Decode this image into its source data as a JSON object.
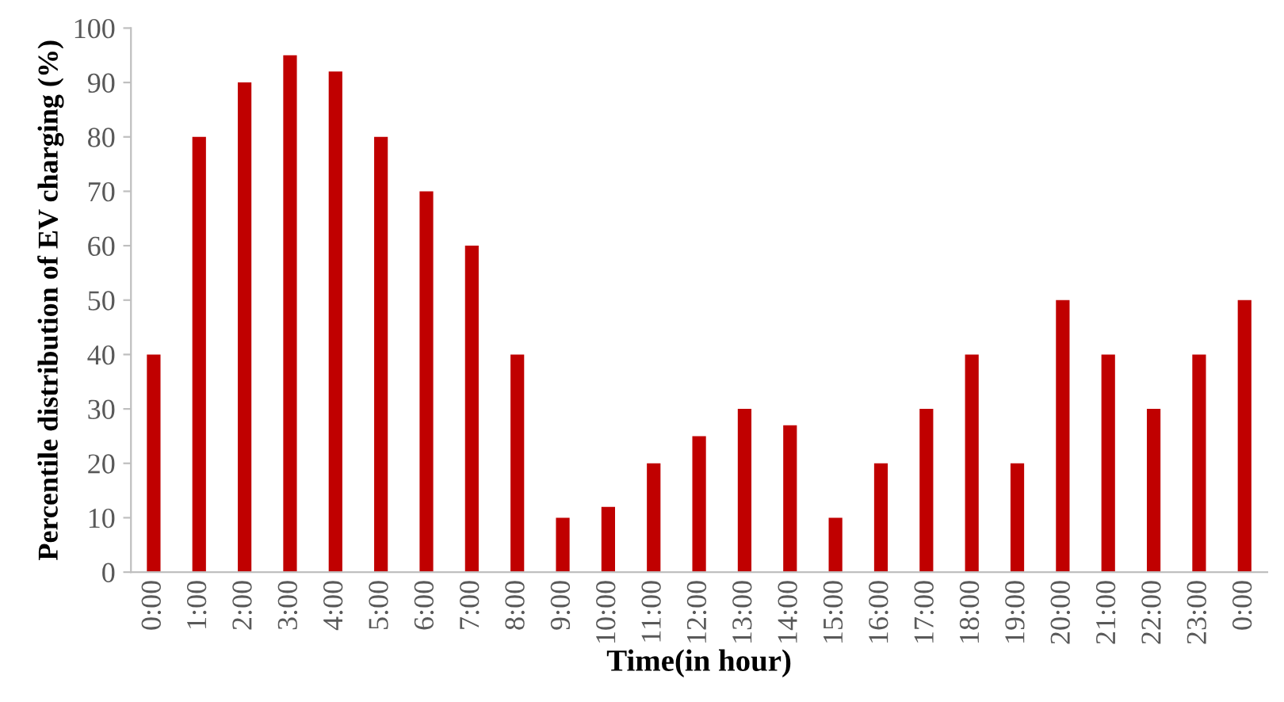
{
  "chart_data": {
    "type": "bar",
    "xlabel": "Time(in hour)",
    "ylabel": "Percentile distribution of EV charging (%)",
    "categories": [
      "0:00",
      "1:00",
      "2:00",
      "3:00",
      "4:00",
      "5:00",
      "6:00",
      "7:00",
      "8:00",
      "9:00",
      "10:00",
      "11:00",
      "12:00",
      "13:00",
      "14:00",
      "15:00",
      "16:00",
      "17:00",
      "18:00",
      "19:00",
      "20:00",
      "21:00",
      "22:00",
      "23:00",
      "0:00"
    ],
    "values": [
      40,
      80,
      90,
      95,
      92,
      80,
      70,
      60,
      40,
      10,
      12,
      20,
      25,
      30,
      27,
      10,
      20,
      30,
      40,
      20,
      50,
      40,
      30,
      40,
      50
    ],
    "color": "#c00000",
    "ylim": [
      0,
      100
    ],
    "yticks": [
      0,
      10,
      20,
      30,
      40,
      50,
      60,
      70,
      80,
      90,
      100
    ],
    "grid": false,
    "legend": false
  }
}
